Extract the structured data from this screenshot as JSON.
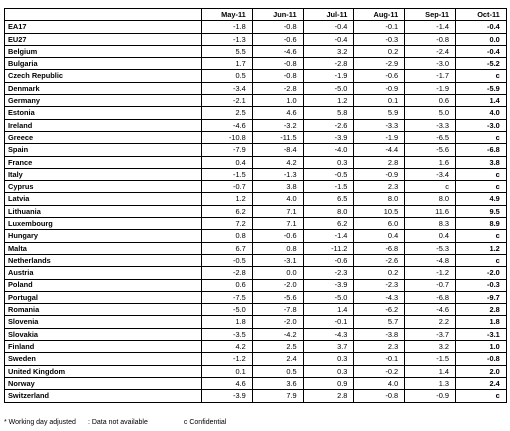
{
  "table": {
    "columns": [
      "",
      "May-11",
      "Jun-11",
      "Jul-11",
      "Aug-11",
      "Sep-11",
      "Oct-11"
    ],
    "rows": [
      [
        "EA17",
        "-1.8",
        "-0.8",
        "-0.4",
        "-0.1",
        "-1.4",
        "-0.4"
      ],
      [
        "EU27",
        "-1.3",
        "-0.6",
        "-0.4",
        "-0.3",
        "-0.8",
        "0.0"
      ],
      [
        "Belgium",
        "5.5",
        "-4.6",
        "3.2",
        "0.2",
        "-2.4",
        "-0.4"
      ],
      [
        "Bulgaria",
        "1.7",
        "-0.8",
        "-2.8",
        "-2.9",
        "-3.0",
        "-5.2"
      ],
      [
        "Czech Republic",
        "0.5",
        "-0.8",
        "-1.9",
        "-0.6",
        "-1.7",
        "c"
      ],
      [
        "Denmark",
        "-3.4",
        "-2.8",
        "-5.0",
        "-0.9",
        "-1.9",
        "-5.9"
      ],
      [
        "Germany",
        "-2.1",
        "1.0",
        "1.2",
        "0.1",
        "0.6",
        "1.4"
      ],
      [
        "Estonia",
        "2.5",
        "4.6",
        "5.8",
        "5.9",
        "5.0",
        "4.0"
      ],
      [
        "Ireland",
        "-4.6",
        "-3.2",
        "-2.6",
        "-3.3",
        "-3.3",
        "-3.0"
      ],
      [
        "Greece",
        "-10.8",
        "-11.5",
        "-3.9",
        "-1.9",
        "-6.5",
        "c"
      ],
      [
        "Spain",
        "-7.9",
        "-8.4",
        "-4.0",
        "-4.4",
        "-5.6",
        "-6.8"
      ],
      [
        "France",
        "0.4",
        "4.2",
        "0.3",
        "2.8",
        "1.6",
        "3.8"
      ],
      [
        "Italy",
        "-1.5",
        "-1.3",
        "-0.5",
        "-0.9",
        "-3.4",
        "c"
      ],
      [
        "Cyprus",
        "-0.7",
        "3.8",
        "-1.5",
        "2.3",
        "c",
        "c"
      ],
      [
        "Latvia",
        "1.2",
        "4.0",
        "6.5",
        "8.0",
        "8.0",
        "4.9"
      ],
      [
        "Lithuania",
        "6.2",
        "7.1",
        "8.0",
        "10.5",
        "11.6",
        "9.5"
      ],
      [
        "Luxembourg",
        "7.2",
        "7.1",
        "6.2",
        "6.0",
        "8.3",
        "8.9"
      ],
      [
        "Hungary",
        "0.8",
        "-0.6",
        "-1.4",
        "0.4",
        "0.4",
        "c"
      ],
      [
        "Malta",
        "6.7",
        "0.8",
        "-11.2",
        "-6.8",
        "-5.3",
        "1.2"
      ],
      [
        "Netherlands",
        "-0.5",
        "-3.1",
        "-0.6",
        "-2.6",
        "-4.8",
        "c"
      ],
      [
        "Austria",
        "-2.8",
        "0.0",
        "-2.3",
        "0.2",
        "-1.2",
        "-2.0"
      ],
      [
        "Poland",
        "0.6",
        "-2.0",
        "-3.9",
        "-2.3",
        "-0.7",
        "-0.3"
      ],
      [
        "Portugal",
        "-7.5",
        "-5.6",
        "-5.0",
        "-4.3",
        "-6.8",
        "-9.7"
      ],
      [
        "Romania",
        "-5.0",
        "-7.8",
        "1.4",
        "-6.2",
        "-4.6",
        "2.8"
      ],
      [
        "Slovenia",
        "1.8",
        "-2.0",
        "-0.1",
        "5.7",
        "2.2",
        "1.8"
      ],
      [
        "Slovakia",
        "-3.5",
        "-4.2",
        "-4.3",
        "-3.8",
        "-3.7",
        "-3.1"
      ],
      [
        "Finland",
        "4.2",
        "2.5",
        "3.7",
        "2.3",
        "3.2",
        "1.0"
      ],
      [
        "Sweden",
        "-1.2",
        "2.4",
        "0.3",
        "-0.1",
        "-1.5",
        "-0.8"
      ],
      [
        "United Kingdom",
        "0.1",
        "0.5",
        "0.3",
        "-0.2",
        "1.4",
        "2.0"
      ],
      [
        "Norway",
        "4.6",
        "3.6",
        "0.9",
        "4.0",
        "1.3",
        "2.4"
      ],
      [
        "Switzerland",
        "-3.9",
        "7.9",
        "2.8",
        "-0.8",
        "-0.9",
        "c"
      ]
    ]
  },
  "footnotes": [
    "* Working day adjusted",
    ": Data not available",
    "c Confidential"
  ]
}
